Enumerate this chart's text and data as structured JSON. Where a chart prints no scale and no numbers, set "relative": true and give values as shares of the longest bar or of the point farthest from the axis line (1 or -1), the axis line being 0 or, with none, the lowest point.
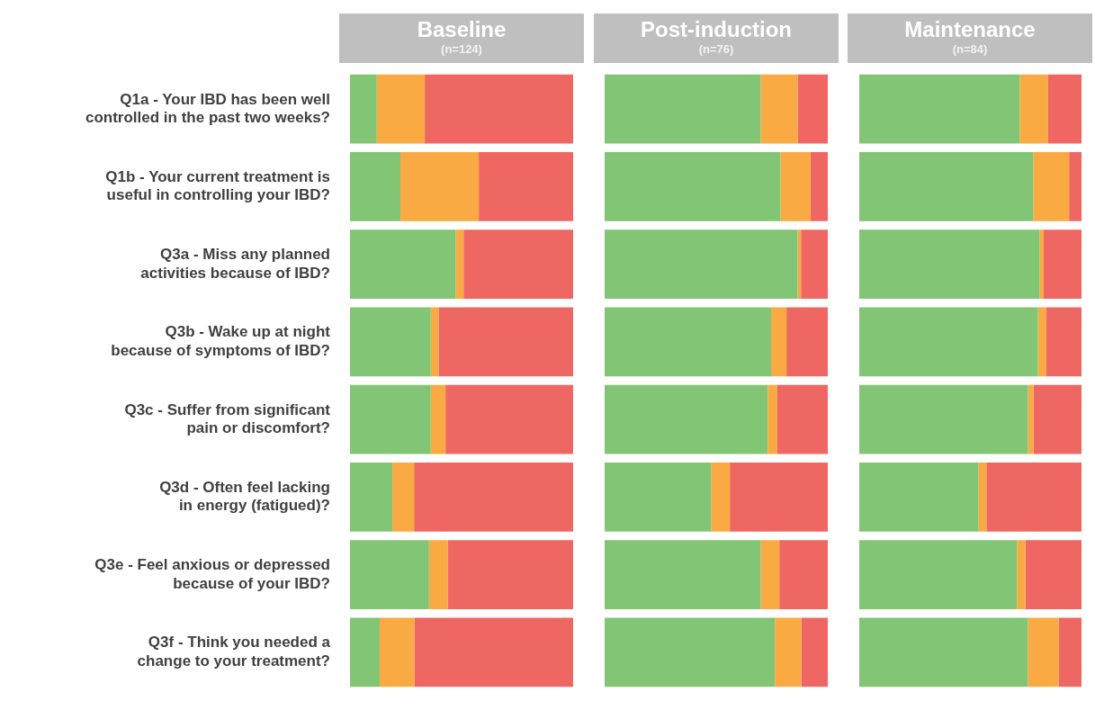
{
  "chart_data": [
    {
      "type": "bar",
      "orientation": "horizontal",
      "stacked": true,
      "relative": true,
      "tick_labels": "y",
      "title": "Baseline",
      "subtitle": "(n=124)",
      "categories": [
        "Q1a - Your IBD has been well controlled in the past two weeks?",
        "Q1b - Your current treatment is useful in controlling your IBD?",
        "Q3a - Miss any planned activities because of IBD?",
        "Q3b - Wake up at night because of symptoms of IBD?",
        "Q3c - Suffer from significant pain or discomfort?",
        "Q3d - Often feel lacking in energy (fatigued)?",
        "Q3e - Feel anxious or depressed because of your IBD?",
        "Q3f - Think you needed a change to your treatment?"
      ],
      "series": [
        {
          "color": "#82c574",
          "values": [
            0.12,
            0.226,
            0.474,
            0.362,
            0.362,
            0.19,
            0.354,
            0.133
          ]
        },
        {
          "color": "#f9aa42",
          "values": [
            0.215,
            0.351,
            0.035,
            0.035,
            0.066,
            0.097,
            0.085,
            0.155
          ]
        },
        {
          "color": "#ef6762",
          "values": [
            0.665,
            0.423,
            0.491,
            0.603,
            0.572,
            0.713,
            0.561,
            0.712
          ]
        }
      ]
    },
    {
      "type": "bar",
      "orientation": "horizontal",
      "stacked": true,
      "relative": true,
      "tick_labels": false,
      "title": "Post-induction",
      "subtitle": "(n=76)",
      "categories": [
        null,
        null,
        null,
        null,
        null,
        null,
        null,
        null
      ],
      "series": [
        {
          "color": "#82c574",
          "values": [
            0.7,
            0.788,
            0.865,
            0.746,
            0.731,
            0.478,
            0.7,
            0.763
          ]
        },
        {
          "color": "#f9aa42",
          "values": [
            0.165,
            0.135,
            0.015,
            0.069,
            0.043,
            0.083,
            0.083,
            0.118
          ]
        },
        {
          "color": "#ef6762",
          "values": [
            0.135,
            0.077,
            0.12,
            0.185,
            0.226,
            0.439,
            0.217,
            0.119
          ]
        }
      ]
    },
    {
      "type": "bar",
      "orientation": "horizontal",
      "stacked": true,
      "relative": true,
      "tick_labels": false,
      "title": "Maintenance",
      "subtitle": "(n=84)",
      "categories": [
        null,
        null,
        null,
        null,
        null,
        null,
        null,
        null
      ],
      "series": [
        {
          "color": "#82c574",
          "values": [
            0.722,
            0.783,
            0.812,
            0.804,
            0.759,
            0.536,
            0.71,
            0.759
          ]
        },
        {
          "color": "#f9aa42",
          "values": [
            0.128,
            0.161,
            0.018,
            0.036,
            0.025,
            0.036,
            0.038,
            0.139
          ]
        },
        {
          "color": "#ef6762",
          "values": [
            0.15,
            0.056,
            0.17,
            0.16,
            0.216,
            0.428,
            0.252,
            0.102
          ]
        }
      ]
    }
  ]
}
